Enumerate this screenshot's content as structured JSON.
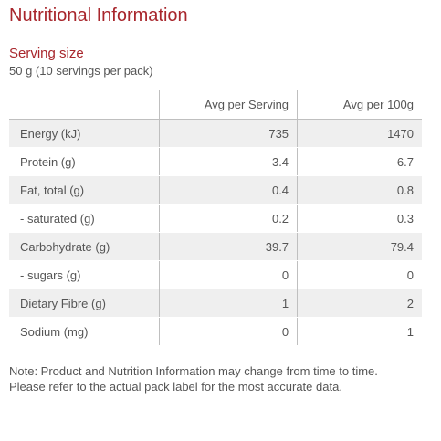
{
  "title": "Nutritional Information",
  "serving": {
    "label": "Serving size",
    "value": "50 g (10 servings per pack)"
  },
  "table": {
    "headers": [
      "",
      "Avg per Serving",
      "Avg per 100g"
    ],
    "rows": [
      {
        "nutrient": "Energy (kJ)",
        "per_serving": "735",
        "per_100g": "1470"
      },
      {
        "nutrient": "Protein (g)",
        "per_serving": "3.4",
        "per_100g": "6.7"
      },
      {
        "nutrient": "Fat, total (g)",
        "per_serving": "0.4",
        "per_100g": "0.8"
      },
      {
        "nutrient": "- saturated (g)",
        "per_serving": "0.2",
        "per_100g": "0.3"
      },
      {
        "nutrient": "Carbohydrate (g)",
        "per_serving": "39.7",
        "per_100g": "79.4"
      },
      {
        "nutrient": "- sugars (g)",
        "per_serving": "0",
        "per_100g": "0"
      },
      {
        "nutrient": "Dietary Fibre (g)",
        "per_serving": "1",
        "per_100g": "2"
      },
      {
        "nutrient": "Sodium (mg)",
        "per_serving": "0",
        "per_100g": "1"
      }
    ]
  },
  "note": "Note: Product and Nutrition Information may change from time to time. Please refer to the actual pack label for the most accurate data.",
  "colors": {
    "accent": "#a8262c",
    "text": "#555555",
    "row_shade": "#efefef",
    "rule": "#bfbfbf"
  }
}
